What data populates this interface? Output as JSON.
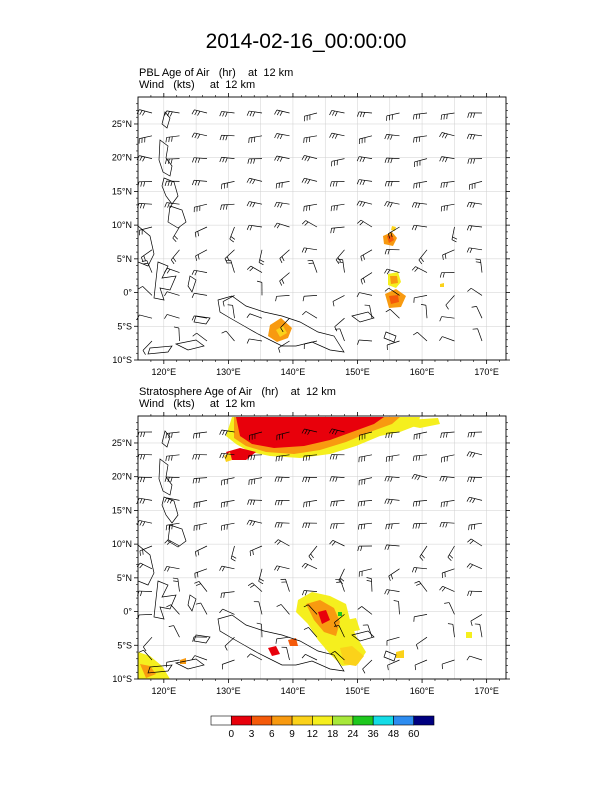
{
  "title": "2014-02-16_00:00:00",
  "panels": [
    {
      "id": "pbl",
      "line1_field": "PBL Age of Air",
      "line1_units": "(hr)",
      "line1_level": "at  12 km",
      "line2_field": "Wind",
      "line2_units": "(kts)",
      "line2_level": "at  12 km"
    },
    {
      "id": "strat",
      "line1_field": "Stratosphere Age of Air",
      "line1_units": "(hr)",
      "line1_level": "at  12 km",
      "line2_field": "Wind",
      "line2_units": "(kts)",
      "line2_level": "at  12 km"
    }
  ],
  "axes": {
    "lon_ticks": [
      "120°E",
      "130°E",
      "140°E",
      "150°E",
      "160°E",
      "170°E"
    ],
    "lat_ticks": [
      "25°N",
      "20°N",
      "15°N",
      "10°N",
      "5°N",
      "0°",
      "5°S",
      "10°S"
    ],
    "lon_range": [
      116,
      173
    ],
    "lat_range": [
      -10,
      29
    ]
  },
  "colorbar": {
    "labels": [
      "0",
      "3",
      "6",
      "9",
      "12",
      "18",
      "24",
      "36",
      "48",
      "60"
    ],
    "colors": [
      "#ffffff",
      "#e8000b",
      "#f45a0a",
      "#f89a10",
      "#fbd21a",
      "#f5ef1e",
      "#a7e83a",
      "#1ec81e",
      "#14dce6",
      "#2d8cf0",
      "#000080"
    ]
  },
  "map_colors": {
    "coast": "#000000",
    "grid": "#cfcfcf",
    "barb": "#000000"
  }
}
